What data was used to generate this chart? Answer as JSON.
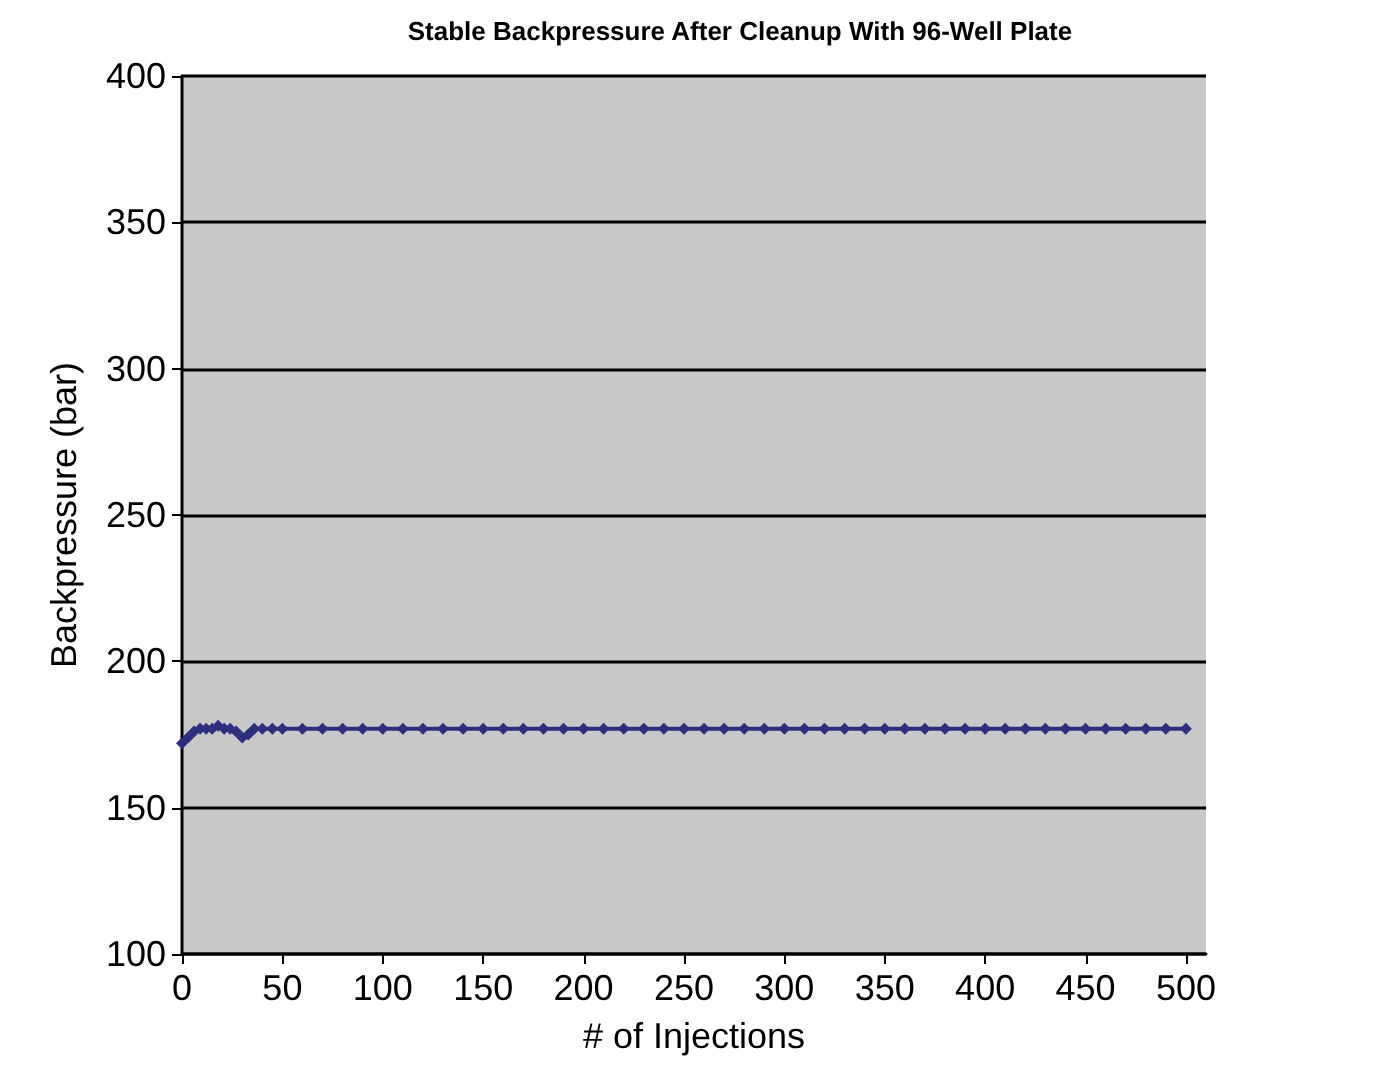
{
  "chart_data": {
    "type": "line",
    "title": "Stable Backpressure After Cleanup With 96-Well Plate",
    "xlabel": "# of Injections",
    "ylabel": "Backpressure (bar)",
    "x": [
      0,
      3,
      6,
      9,
      12,
      15,
      18,
      21,
      24,
      27,
      30,
      33,
      36,
      40,
      45,
      50,
      60,
      70,
      80,
      90,
      100,
      110,
      120,
      130,
      140,
      150,
      160,
      170,
      180,
      190,
      200,
      210,
      220,
      230,
      240,
      250,
      260,
      270,
      280,
      290,
      300,
      310,
      320,
      330,
      340,
      350,
      360,
      370,
      380,
      390,
      400,
      410,
      420,
      430,
      440,
      450,
      460,
      470,
      480,
      490,
      500
    ],
    "series": [
      {
        "color": "#2e2e7e",
        "values": [
          172,
          174,
          176,
          177,
          177,
          177,
          178,
          177,
          177,
          176,
          174,
          175,
          177,
          177,
          177,
          177,
          177,
          177,
          177,
          177,
          177,
          177,
          177,
          177,
          177,
          177,
          177,
          177,
          177,
          177,
          177,
          177,
          177,
          177,
          177,
          177,
          177,
          177,
          177,
          177,
          177,
          177,
          177,
          177,
          177,
          177,
          177,
          177,
          177,
          177,
          177,
          177,
          177,
          177,
          177,
          177,
          177,
          177,
          177,
          177,
          177
        ]
      }
    ],
    "xlim": [
      0,
      510
    ],
    "xticks": [
      0,
      50,
      100,
      150,
      200,
      250,
      300,
      350,
      400,
      450,
      500
    ],
    "ylim": [
      100,
      400
    ],
    "yticks": [
      100,
      150,
      200,
      250,
      300,
      350,
      400
    ],
    "grid": "y",
    "marker": "diamond",
    "line_style": "solid"
  }
}
